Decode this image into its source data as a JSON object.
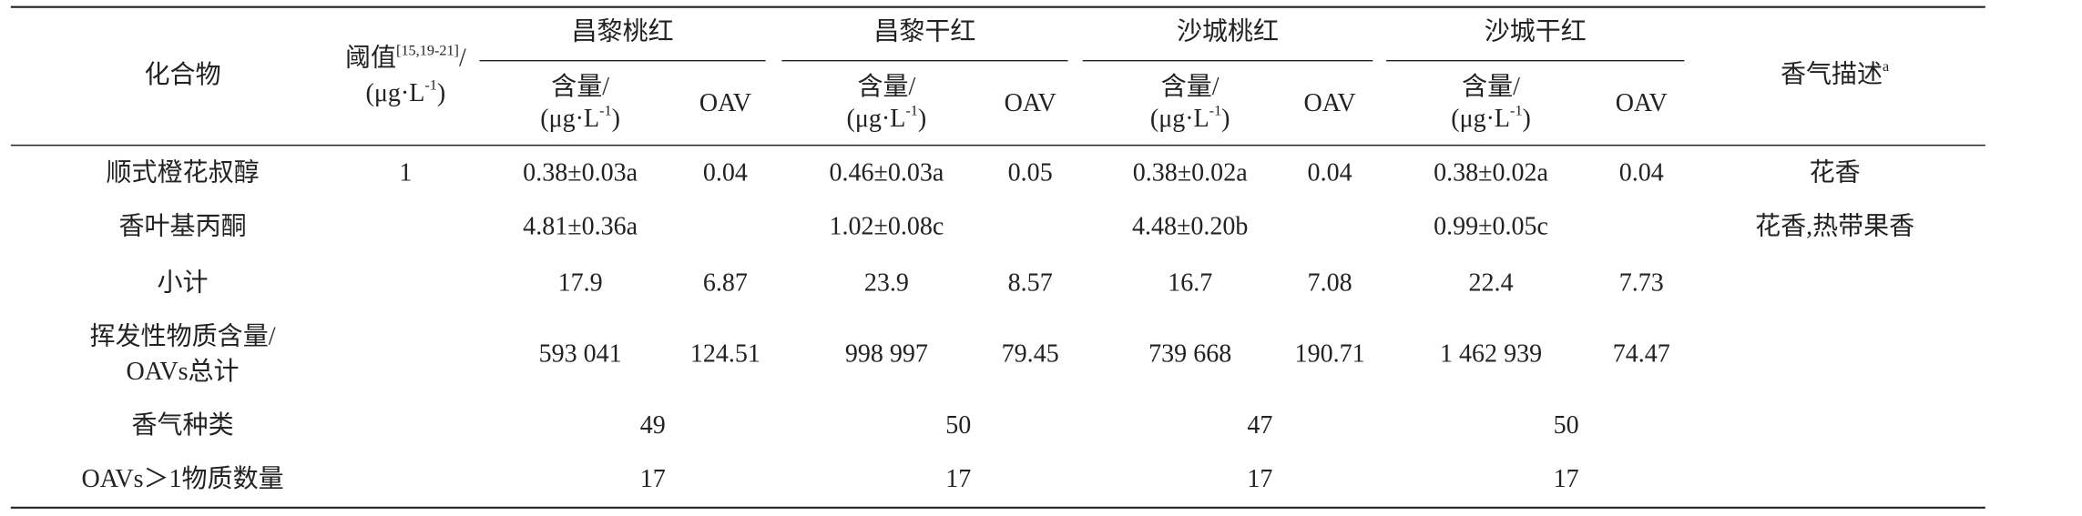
{
  "header": {
    "compound": "化合物",
    "threshold": {
      "text": "阈值",
      "ref": "[15,19-21]",
      "slash": "/"
    },
    "unit": {
      "pre": "(μg·L",
      "sup": "-1",
      "post": ")"
    },
    "groups": [
      {
        "name": "昌黎桃红",
        "content": "含量/",
        "oav": "OAV"
      },
      {
        "name": "昌黎干红",
        "content": "含量/",
        "oav": "OAV"
      },
      {
        "name": "沙城桃红",
        "content": "含量/",
        "oav": "OAV"
      },
      {
        "name": "沙城干红",
        "content": "含量/",
        "oav": "OAV"
      }
    ],
    "aroma": {
      "text": "香气描述",
      "sup": "a"
    }
  },
  "rows": [
    {
      "label": [
        "顺式橙花叔醇"
      ],
      "threshold": "1",
      "cells": [
        "0.38±0.03a",
        "0.04",
        "0.46±0.03a",
        "0.05",
        "0.38±0.02a",
        "0.04",
        "0.38±0.02a",
        "0.04"
      ],
      "aroma": "花香"
    },
    {
      "label": [
        "香叶基丙酮"
      ],
      "cells": [
        "4.81±0.36a",
        null,
        "1.02±0.08c",
        null,
        "4.48±0.20b",
        null,
        "0.99±0.05c",
        null
      ],
      "aroma": "花香,热带果香"
    },
    {
      "label": [
        "小计"
      ],
      "cells": [
        "17.9",
        "6.87",
        "23.9",
        "8.57",
        "16.7",
        "7.08",
        "22.4",
        "7.73"
      ]
    },
    {
      "label": [
        "挥发性物质含量/",
        "OAVs总计"
      ],
      "cells": [
        "593 041",
        "124.51",
        "998 997",
        "79.45",
        "739 668",
        "190.71",
        "1 462 939",
        "74.47"
      ]
    },
    {
      "label": [
        "香气种类"
      ],
      "merged": [
        "49",
        "50",
        "47",
        "50"
      ]
    },
    {
      "label": [
        "OAVs＞1物质数量"
      ],
      "merged": [
        "17",
        "17",
        "17",
        "17"
      ]
    }
  ]
}
